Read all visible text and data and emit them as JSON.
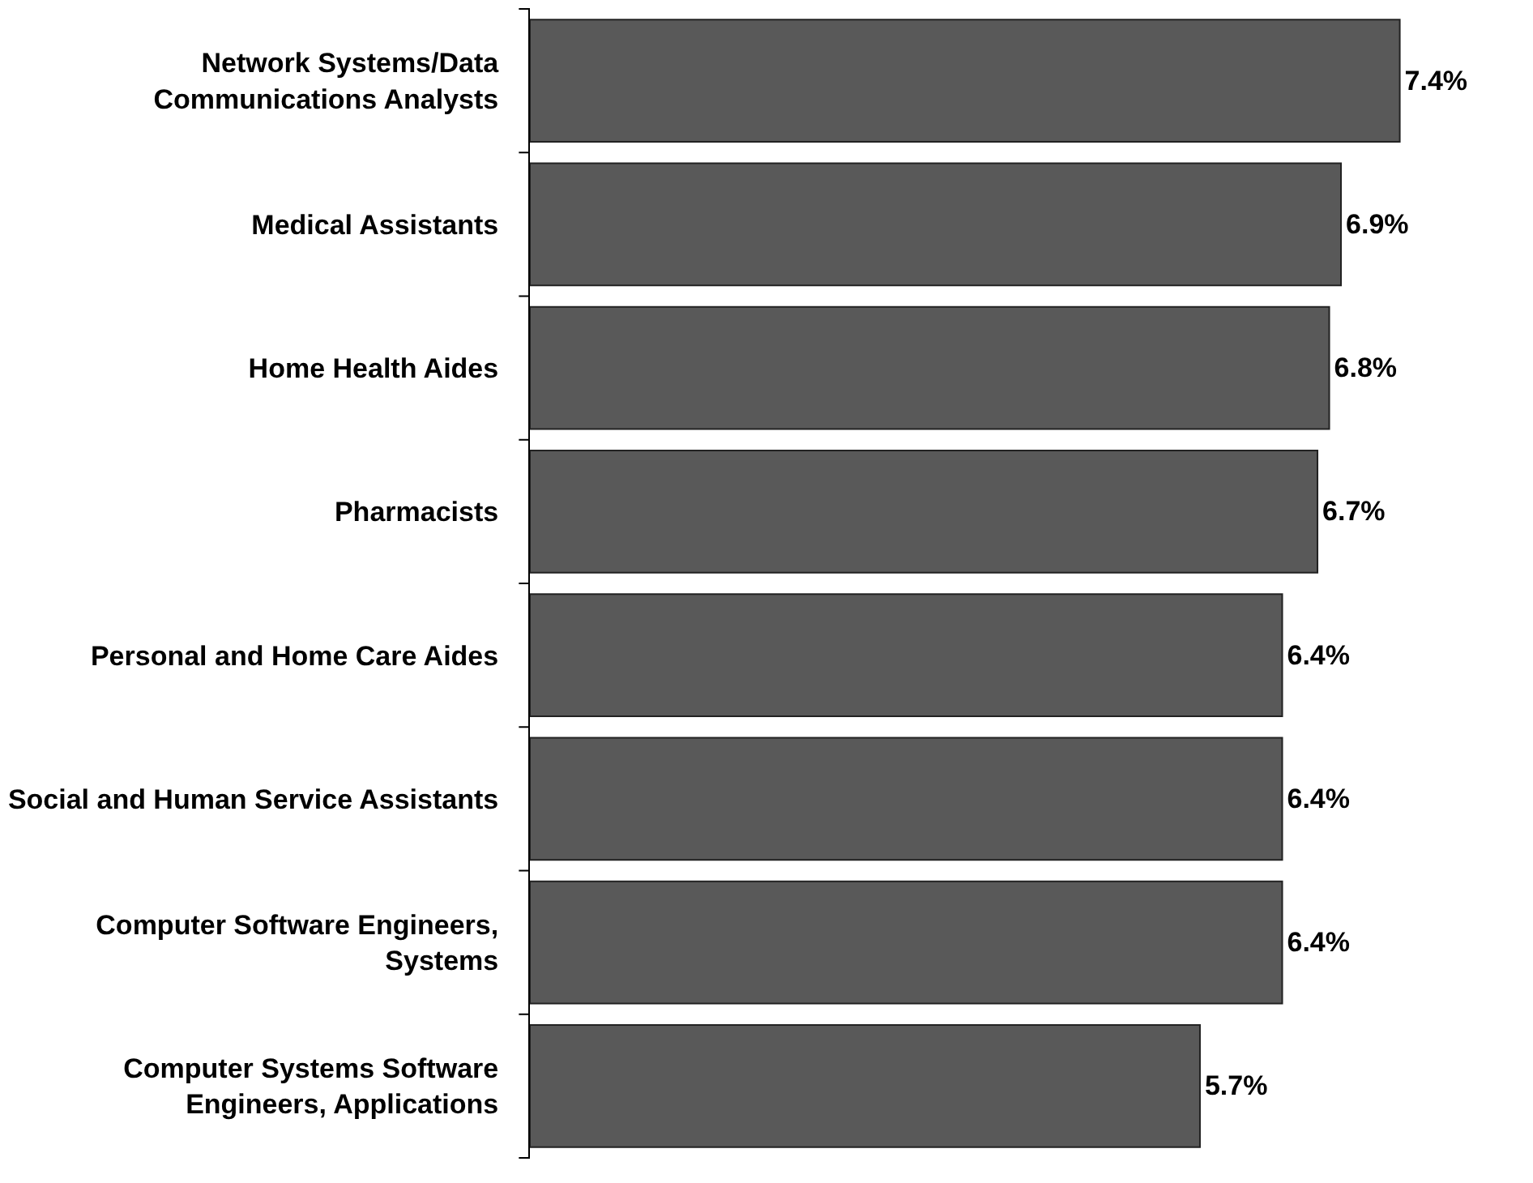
{
  "chart_data": {
    "type": "bar",
    "orientation": "horizontal",
    "categories": [
      "Network Systems/Data\nCommunications Analysts",
      "Medical Assistants",
      "Home Health Aides",
      "Pharmacists",
      "Personal and Home Care Aides",
      "Social and Human Service Assistants",
      "Computer Software Engineers,\nSystems",
      "Computer Systems Software\nEngineers, Applications"
    ],
    "values": [
      7.4,
      6.9,
      6.8,
      6.7,
      6.4,
      6.4,
      6.4,
      5.7
    ],
    "value_labels": [
      "7.4%",
      "6.9%",
      "6.8%",
      "6.7%",
      "6.4%",
      "6.4%",
      "6.4%",
      "5.7%"
    ],
    "color": "#595959"
  }
}
